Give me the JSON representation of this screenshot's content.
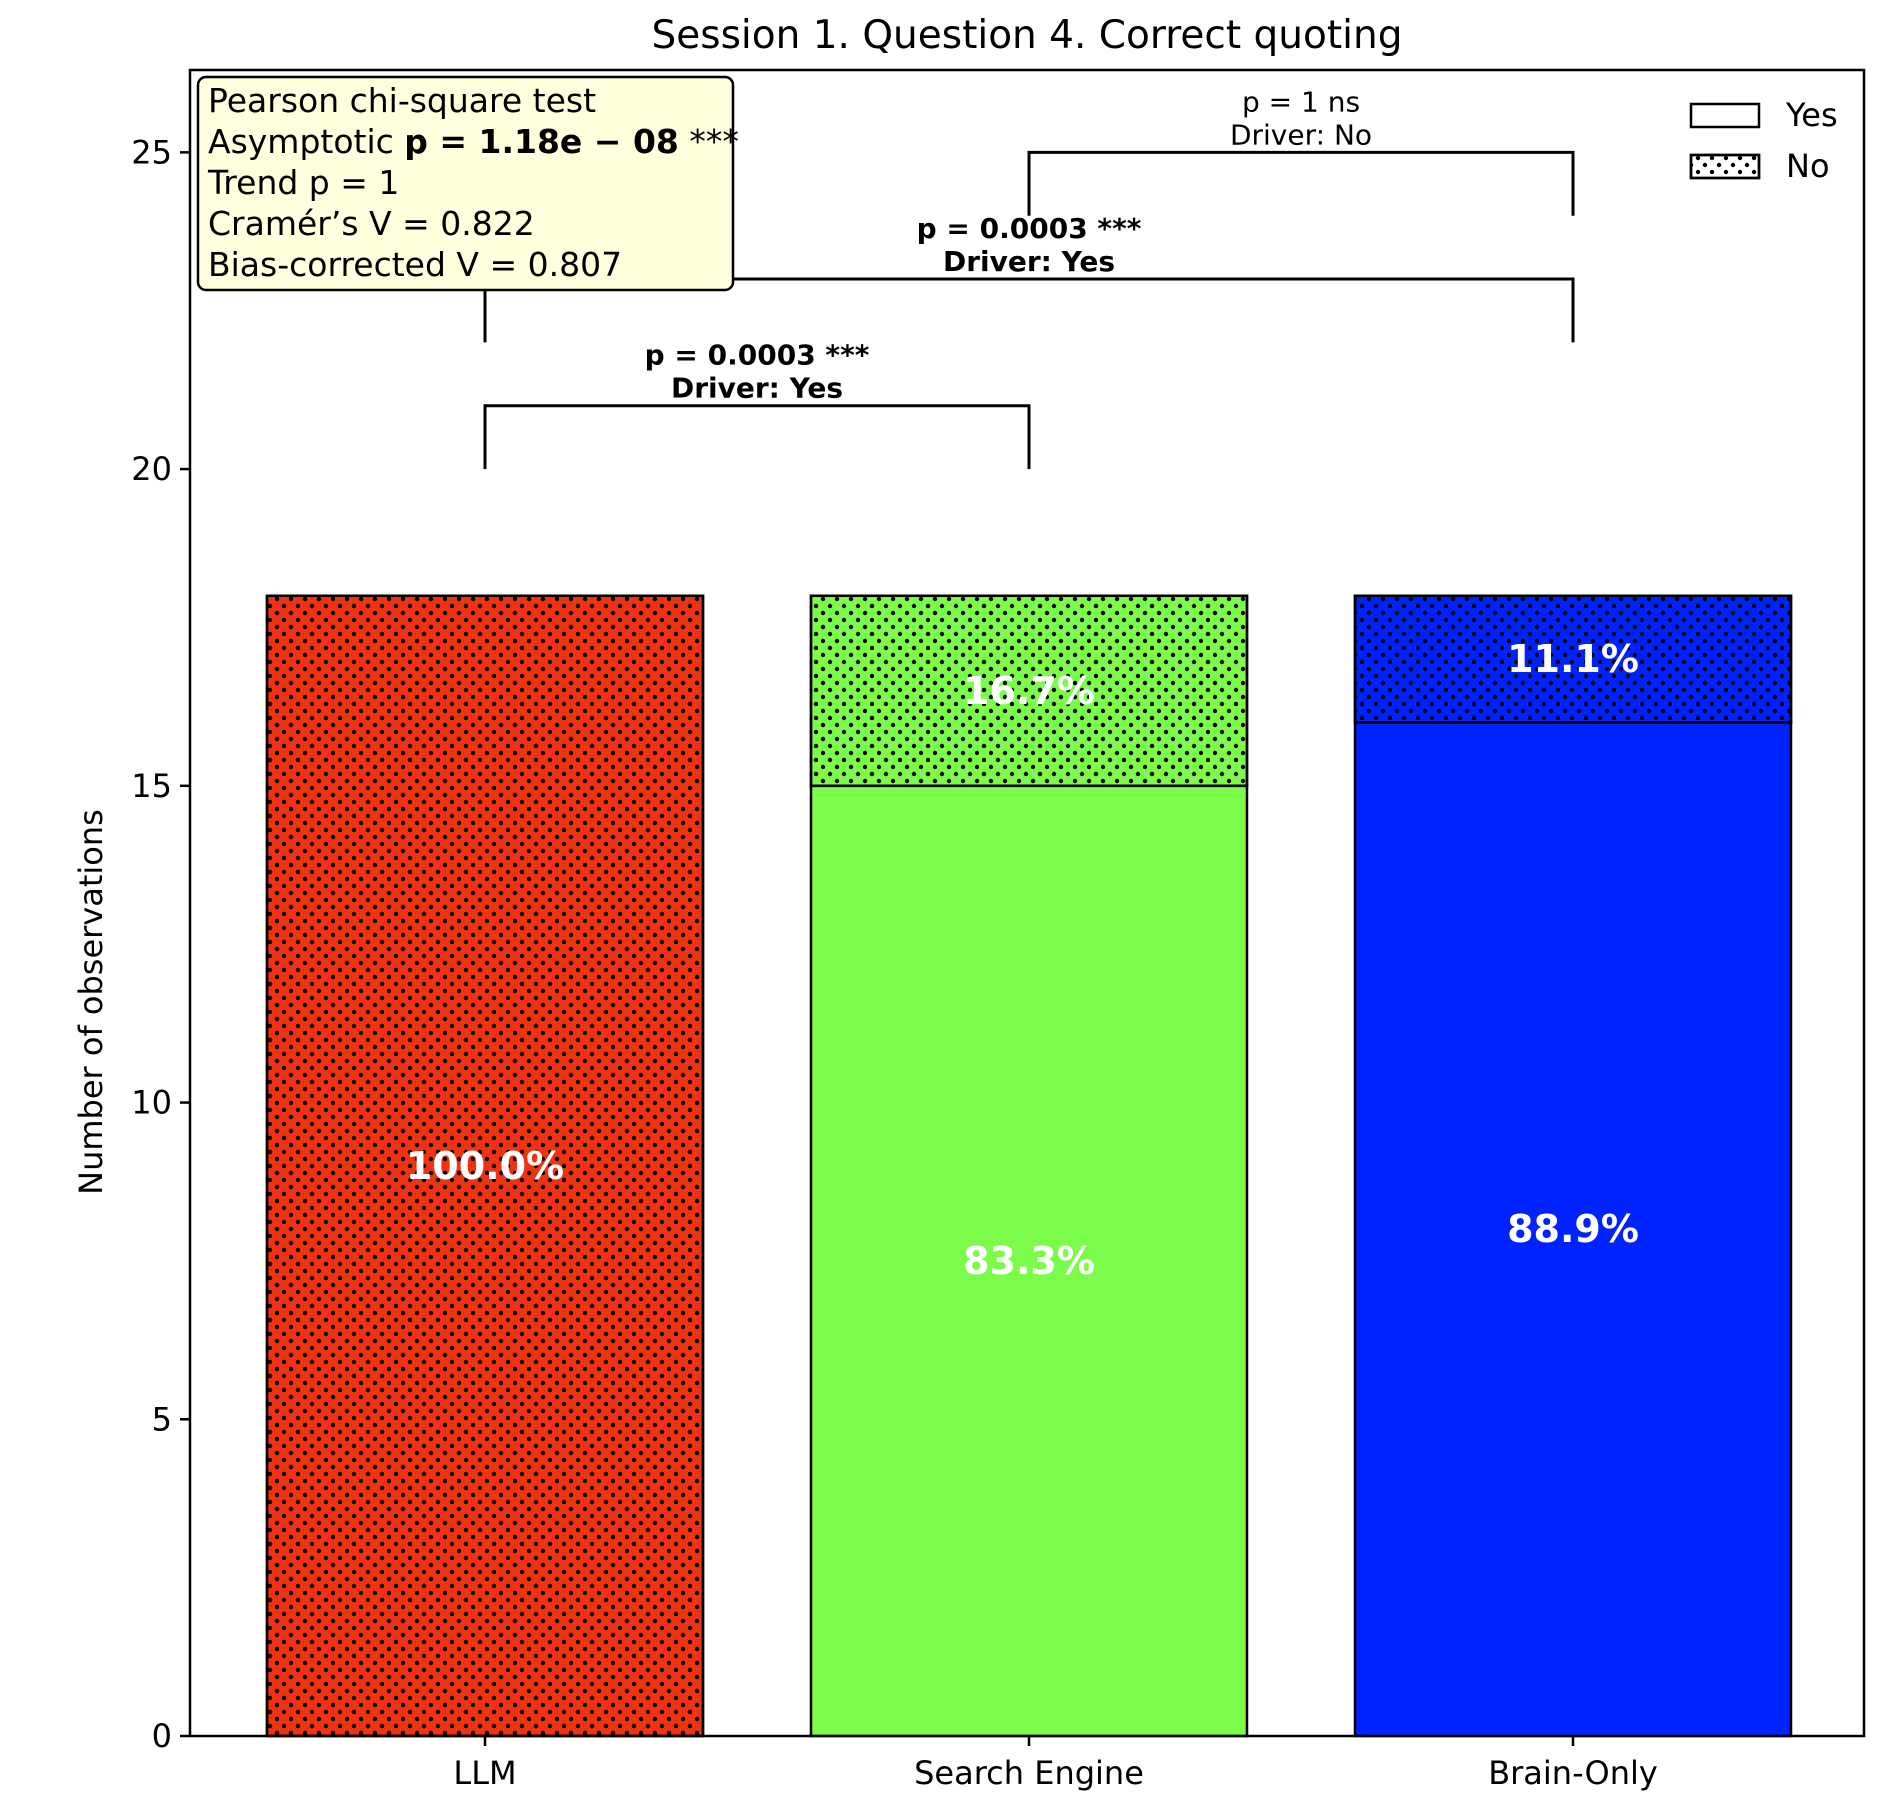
{
  "chart_data": {
    "type": "bar",
    "stacked": true,
    "title": "Session 1. Question 4. Correct quoting",
    "xlabel": "",
    "ylabel": "Number of observations",
    "ylim": [
      0,
      26.3
    ],
    "yticks": [
      0,
      5,
      10,
      15,
      20,
      25
    ],
    "categories": [
      "LLM",
      "Search Engine",
      "Brain-Only"
    ],
    "colors": [
      "#ee3311",
      "#7cfc4a",
      "#0022ff"
    ],
    "series": [
      {
        "name": "Yes",
        "hatch": "none",
        "values": [
          0,
          15,
          16
        ],
        "labels": [
          "",
          "83.3%",
          "88.9%"
        ]
      },
      {
        "name": "No",
        "hatch": "dots",
        "values": [
          18,
          3,
          2
        ],
        "labels": [
          "100.0%",
          "16.7%",
          "11.1%"
        ]
      }
    ],
    "legend": {
      "position": "top-right",
      "entries": [
        "Yes",
        "No"
      ]
    },
    "stats_box": {
      "lines": [
        {
          "text": "Pearson chi-square test"
        },
        {
          "prefix": "Asymptotic ",
          "bold": "p = 1.18e − 08",
          "suffix": " ***"
        },
        {
          "text": "Trend p = 1"
        },
        {
          "text": "Cramér’s V = 0.822"
        },
        {
          "text": "Bias-corrected V = 0.807"
        }
      ],
      "background": "#ffffdd"
    },
    "comparisons": [
      {
        "from": 0,
        "to": 1,
        "y": 21,
        "p_text": "p = 0.0003 ***",
        "driver_text": "Driver: Yes",
        "bold": true
      },
      {
        "from": 0,
        "to": 2,
        "y": 23,
        "p_text": "p = 0.0003 ***",
        "driver_text": "Driver: Yes",
        "bold": true
      },
      {
        "from": 1,
        "to": 2,
        "y": 25,
        "p_text": "p = 1 ns",
        "driver_text": "Driver: No",
        "bold": false
      }
    ],
    "grid": false
  }
}
